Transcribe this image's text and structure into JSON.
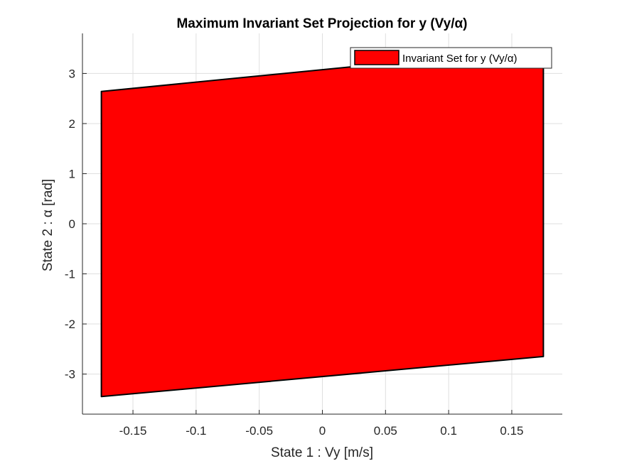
{
  "chart_data": {
    "type": "area",
    "title": "Maximum Invariant Set Projection for y (Vy/α)",
    "xlabel": "State 1 : Vy [m/s]",
    "ylabel": "State 2 : α [rad]",
    "xlim": [
      -0.19,
      0.19
    ],
    "ylim": [
      -3.8,
      3.8
    ],
    "xticks": [
      -0.15,
      -0.1,
      -0.05,
      0,
      0.05,
      0.1,
      0.15
    ],
    "xtick_labels": [
      "-0.15",
      "-0.1",
      "-0.05",
      "0",
      "0.05",
      "0.1",
      "0.15"
    ],
    "yticks": [
      -3,
      -2,
      -1,
      0,
      1,
      2,
      3
    ],
    "ytick_labels": [
      "-3",
      "-2",
      "-1",
      "0",
      "1",
      "2",
      "3"
    ],
    "grid": true,
    "legend_position": "top-right",
    "series": [
      {
        "name": "Invariant Set for y (Vy/α)",
        "color": "#ff0000",
        "edge_color": "#000000",
        "polygon": [
          [
            -0.175,
            -3.45
          ],
          [
            0.175,
            -2.65
          ],
          [
            0.175,
            3.25
          ],
          [
            0.05,
            3.2
          ],
          [
            -0.175,
            2.64
          ]
        ]
      }
    ]
  }
}
